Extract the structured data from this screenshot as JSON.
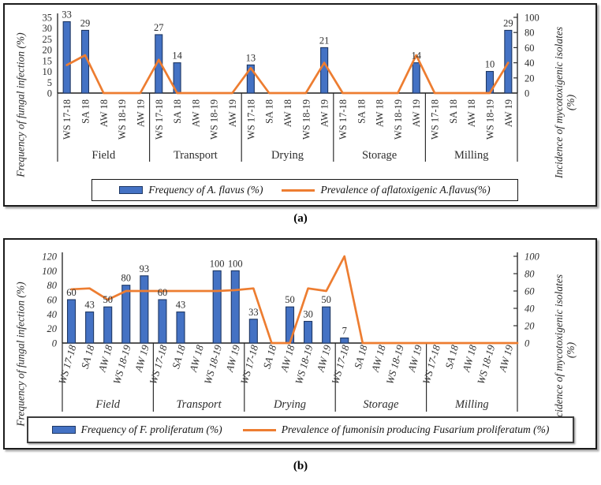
{
  "figure": {
    "captions": [
      "(a)",
      "(b)"
    ],
    "colors": {
      "bar_fill": "#4472C4",
      "bar_border": "#1F3864",
      "line": "#ED7D31"
    }
  },
  "chart_data": [
    {
      "id": "a",
      "type": "bar+line",
      "groups": [
        "Field",
        "Transport",
        "Drying",
        "Storage",
        "Milling"
      ],
      "seasons": [
        "WS 17-18",
        "SA 18",
        "AW 18",
        "WS 18-19",
        "AW 19"
      ],
      "left_axis": {
        "label": "Frequency of fungal infection (%)",
        "min": 0,
        "max": 35,
        "ticks": [
          35,
          30,
          25,
          20,
          15,
          10,
          5,
          0
        ]
      },
      "right_axis": {
        "label": "Incidence of mycotoxigenic isolates",
        "label_line2": "(%)",
        "min": 0,
        "max": 100,
        "ticks": [
          100,
          80,
          60,
          40,
          20,
          0
        ]
      },
      "legend_position": "bottom",
      "series": [
        {
          "name": "Frequency of A. flavus (%)",
          "type": "bar",
          "axis": "left",
          "values": [
            33,
            29,
            0,
            0,
            0,
            27,
            14,
            0,
            0,
            0,
            13,
            0,
            0,
            0,
            21,
            0,
            0,
            0,
            0,
            14,
            0,
            0,
            0,
            10,
            29
          ]
        },
        {
          "name": "Prevalence of aflatoxigenic A.flavus(%)",
          "type": "line",
          "axis": "right",
          "values": [
            37,
            50,
            0,
            0,
            0,
            44,
            0,
            0,
            0,
            0,
            33,
            0,
            0,
            0,
            40,
            0,
            0,
            0,
            0,
            50,
            0,
            0,
            0,
            0,
            40
          ],
          "extend_to_right_axis": false
        }
      ]
    },
    {
      "id": "b",
      "type": "bar+line",
      "groups": [
        "Field",
        "Transport",
        "Drying",
        "Storage",
        "Milling"
      ],
      "seasons": [
        "WS 17-18",
        "SA 18",
        "AW 18",
        "WS 18-19",
        "AW 19"
      ],
      "left_axis": {
        "label": "Frequency of fungal infection (%)",
        "min": 0,
        "max": 120,
        "ticks": [
          120,
          100,
          80,
          60,
          40,
          20,
          0
        ]
      },
      "right_axis": {
        "label": "Incidence of mycotoxigenic isolates",
        "label_line2": "(%)",
        "min": 0,
        "max": 100,
        "ticks": [
          100,
          80,
          60,
          40,
          20,
          0
        ]
      },
      "legend_position": "bottom",
      "series": [
        {
          "name": "Frequency of F. proliferatum (%)",
          "type": "bar",
          "axis": "left",
          "values": [
            60,
            43,
            50,
            80,
            93,
            60,
            43,
            0,
            100,
            100,
            33,
            0,
            50,
            30,
            50,
            7,
            0,
            0,
            0,
            0,
            0,
            0,
            0,
            0,
            0
          ]
        },
        {
          "name": "Prevalence of fumonisin producing Fusarium proliferatum (%)",
          "type": "line",
          "axis": "right",
          "values": [
            62,
            63,
            50,
            60,
            60,
            60,
            60,
            60,
            60,
            61,
            63,
            0,
            0,
            63,
            60,
            100,
            0,
            0,
            0,
            0,
            0,
            0,
            0,
            0,
            0
          ],
          "extend_to_right_axis": true
        }
      ]
    }
  ]
}
